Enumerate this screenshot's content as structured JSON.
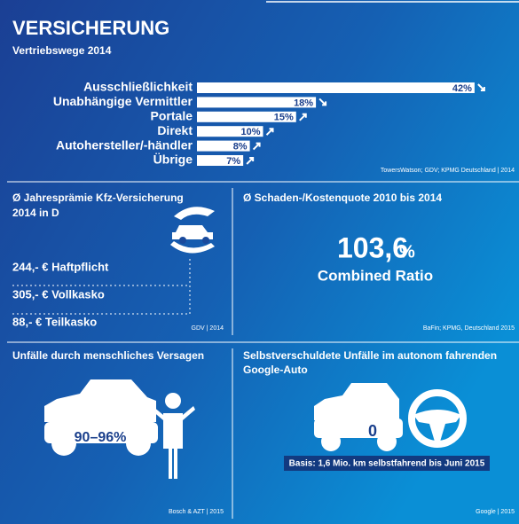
{
  "header": {
    "title": "VERSICHERUNG"
  },
  "chart_data": {
    "type": "bar",
    "subtitle": "Vertriebswege 2014",
    "categories": [
      "Ausschließlichkeit",
      "Unabhängige Vermittler",
      "Portale",
      "Direkt",
      "Autohersteller/-händler",
      "Übrige"
    ],
    "values": [
      42,
      18,
      15,
      10,
      8,
      7
    ],
    "value_labels": [
      "42%",
      "18%",
      "15%",
      "10%",
      "8%",
      "7%"
    ],
    "color": "#ffffff",
    "source": "TowersWatson; GDV; KPMG Deutschland | 2014"
  },
  "panels": [
    {
      "title": [
        "Ø Jahresprämie Kfz-Versicherung",
        "2014 in D"
      ],
      "items": [
        "244,- € Haftpflicht",
        "305,- € Vollkasko",
        "88,- € Teilkasko"
      ],
      "source": "GDV | 2014"
    },
    {
      "title": [
        "Ø Schaden-/Kostenquote 2010 bis 2014"
      ],
      "number": "103,6",
      "unit": "%",
      "caption": "Combined Ratio",
      "source": "BaFin; KPMG, Deutschland 2015"
    },
    {
      "title": [
        "Unfälle durch menschliches Versagen"
      ],
      "car_label": "90–96%",
      "source": "Bosch & AZT | 2015"
    },
    {
      "title": [
        "Selbstverschuldete Unfälle im autonom fahrenden",
        "Google-Auto"
      ],
      "car_label": "0",
      "note": "Basis: 1,6 Mio. km selbstfahrend bis Juni 2015",
      "source": "Google | 2015"
    }
  ]
}
